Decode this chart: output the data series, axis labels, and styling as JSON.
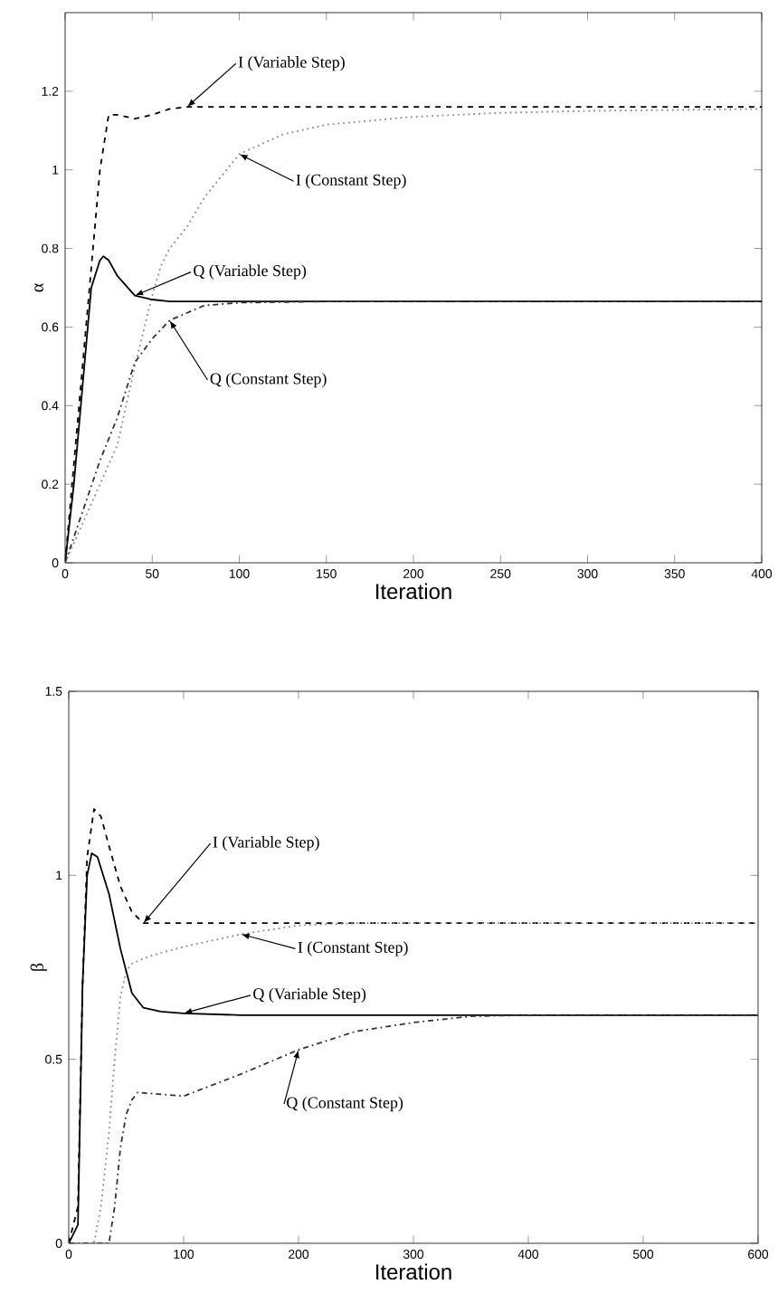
{
  "chart_data": [
    {
      "type": "line",
      "xlabel": "Iteration",
      "ylabel": "α",
      "xlim": [
        0,
        400
      ],
      "ylim": [
        0,
        1.4
      ],
      "xticks": [
        0,
        50,
        100,
        150,
        200,
        250,
        300,
        350,
        400
      ],
      "yticks": [
        0,
        0.2,
        0.4,
        0.6,
        0.8,
        1,
        1.2
      ],
      "grid": false,
      "series": [
        {
          "color": "#000000",
          "line_style": "dashed",
          "x": [
            0,
            5,
            10,
            15,
            20,
            25,
            30,
            40,
            50,
            60,
            70,
            100,
            200,
            400
          ],
          "values": [
            0,
            0.25,
            0.5,
            0.75,
            1.0,
            1.14,
            1.14,
            1.13,
            1.14,
            1.155,
            1.16,
            1.16,
            1.16,
            1.16
          ]
        },
        {
          "color": "#888888",
          "line_style": "dotted",
          "x": [
            0,
            10,
            20,
            30,
            40,
            50,
            55,
            60,
            70,
            80,
            100,
            125,
            150,
            200,
            250,
            300,
            400
          ],
          "values": [
            0,
            0.1,
            0.2,
            0.3,
            0.5,
            0.68,
            0.755,
            0.8,
            0.855,
            0.93,
            1.04,
            1.09,
            1.115,
            1.135,
            1.145,
            1.15,
            1.155
          ]
        },
        {
          "color": "#000000",
          "line_style": "solid",
          "x": [
            0,
            5,
            10,
            15,
            20,
            22,
            25,
            30,
            40,
            50,
            60,
            100,
            400
          ],
          "values": [
            0,
            0.2,
            0.45,
            0.7,
            0.77,
            0.78,
            0.77,
            0.73,
            0.68,
            0.67,
            0.665,
            0.665,
            0.665
          ]
        },
        {
          "color": "#333333",
          "line_style": "dashdot",
          "x": [
            0,
            10,
            20,
            30,
            40,
            50,
            60,
            80,
            100,
            150,
            400
          ],
          "values": [
            0,
            0.13,
            0.26,
            0.37,
            0.51,
            0.57,
            0.617,
            0.655,
            0.662,
            0.665,
            0.665
          ]
        }
      ],
      "annotations": [
        {
          "text": "I (Variable Step)",
          "x": 70,
          "y": 1.16
        },
        {
          "text": "I (Constant Step)",
          "x": 100,
          "y": 1.04
        },
        {
          "text": "Q (Variable Step)",
          "x": 40,
          "y": 0.68
        },
        {
          "text": "Q (Constant Step)",
          "x": 60,
          "y": 0.617
        }
      ]
    },
    {
      "type": "line",
      "xlabel": "Iteration",
      "ylabel": "β",
      "xlim": [
        0,
        600
      ],
      "ylim": [
        0,
        1.5
      ],
      "xticks": [
        0,
        100,
        200,
        300,
        400,
        500,
        600
      ],
      "yticks": [
        0,
        0.5,
        1,
        1.5
      ],
      "grid": false,
      "series": [
        {
          "color": "#000000",
          "line_style": "dashed",
          "x": [
            0,
            8,
            12,
            16,
            22,
            28,
            35,
            45,
            55,
            65,
            80,
            600
          ],
          "values": [
            0,
            0.1,
            0.7,
            1.05,
            1.18,
            1.16,
            1.08,
            0.97,
            0.9,
            0.87,
            0.87,
            0.87
          ]
        },
        {
          "color": "#888888",
          "line_style": "dotted",
          "x": [
            0,
            22,
            28,
            35,
            40,
            45,
            50,
            55,
            70,
            100,
            150,
            200,
            250,
            300,
            600
          ],
          "values": [
            0,
            0,
            0.1,
            0.3,
            0.5,
            0.67,
            0.74,
            0.76,
            0.78,
            0.806,
            0.84,
            0.864,
            0.87,
            0.87,
            0.87
          ]
        },
        {
          "color": "#000000",
          "line_style": "solid",
          "x": [
            0,
            8,
            12,
            16,
            20,
            25,
            35,
            45,
            55,
            65,
            80,
            100,
            150,
            600
          ],
          "values": [
            0,
            0.05,
            0.7,
            1.0,
            1.06,
            1.05,
            0.95,
            0.8,
            0.68,
            0.64,
            0.63,
            0.625,
            0.62,
            0.62
          ]
        },
        {
          "color": "#333333",
          "line_style": "dashdot",
          "x": [
            0,
            35,
            40,
            45,
            50,
            55,
            60,
            100,
            150,
            200,
            250,
            300,
            350,
            400,
            600
          ],
          "values": [
            0,
            0,
            0.1,
            0.26,
            0.35,
            0.39,
            0.41,
            0.4,
            0.46,
            0.526,
            0.576,
            0.6,
            0.617,
            0.62,
            0.62
          ]
        }
      ],
      "annotations": [
        {
          "text": "I (Variable Step)",
          "x": 65,
          "y": 0.87
        },
        {
          "text": "I (Constant Step)",
          "x": 150,
          "y": 0.84
        },
        {
          "text": "Q (Variable Step)",
          "x": 100,
          "y": 0.625
        },
        {
          "text": "Q (Constant Step)",
          "x": 200,
          "y": 0.526
        }
      ]
    }
  ]
}
